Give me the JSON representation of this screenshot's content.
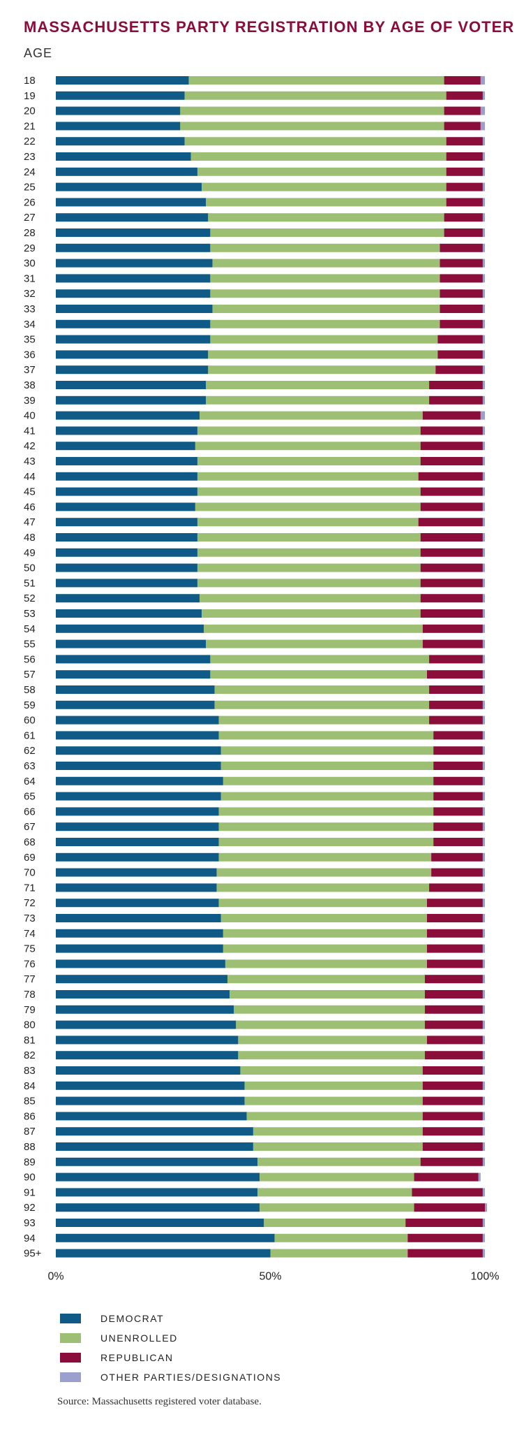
{
  "chart_data": {
    "type": "bar",
    "orientation": "horizontal",
    "stacked": true,
    "title": "MASSACHUSETTS PARTY REGISTRATION BY AGE OF VOTER",
    "ylabel": "AGE",
    "xlim": [
      0,
      100
    ],
    "xticks": [
      "0%",
      "50%",
      "100%"
    ],
    "categories": [
      "18",
      "19",
      "20",
      "21",
      "22",
      "23",
      "24",
      "25",
      "26",
      "27",
      "28",
      "29",
      "30",
      "31",
      "32",
      "33",
      "34",
      "35",
      "36",
      "37",
      "38",
      "39",
      "40",
      "41",
      "42",
      "43",
      "44",
      "45",
      "46",
      "47",
      "48",
      "49",
      "50",
      "51",
      "52",
      "53",
      "54",
      "55",
      "56",
      "57",
      "58",
      "59",
      "60",
      "61",
      "62",
      "63",
      "64",
      "65",
      "66",
      "67",
      "68",
      "69",
      "70",
      "71",
      "72",
      "73",
      "74",
      "75",
      "76",
      "77",
      "78",
      "79",
      "80",
      "81",
      "82",
      "83",
      "84",
      "85",
      "86",
      "87",
      "88",
      "89",
      "90",
      "91",
      "92",
      "93",
      "94",
      "95+"
    ],
    "series": [
      {
        "name": "DEMOCRAT",
        "color": "#0f5a86",
        "values": [
          31,
          30,
          29,
          29,
          30,
          31.5,
          33,
          34,
          35,
          35.5,
          36,
          36,
          36.5,
          36,
          36,
          36.5,
          36,
          36,
          35.5,
          35.5,
          35,
          35,
          33.5,
          33,
          32.5,
          33,
          33,
          33,
          32.5,
          33,
          33,
          33,
          33,
          33,
          33.5,
          34,
          34.5,
          35,
          36,
          36,
          37,
          37,
          38,
          38,
          38.5,
          38.5,
          39,
          38.5,
          38,
          38,
          38,
          38,
          37.5,
          37.5,
          38,
          38.5,
          39,
          39,
          39.5,
          40,
          40.5,
          41.5,
          42,
          42.5,
          42.5,
          43,
          44,
          44,
          44.5,
          46,
          46,
          47,
          47.5,
          47,
          47.5,
          48.5,
          51,
          50
        ]
      },
      {
        "name": "UNENROLLED",
        "color": "#9cbf74",
        "values": [
          59.5,
          61,
          61.5,
          61.5,
          61,
          59.5,
          58,
          57,
          56,
          55,
          54.5,
          53.5,
          53,
          53.5,
          53.5,
          53,
          53.5,
          53,
          53.5,
          53,
          52,
          52,
          52,
          52,
          52.5,
          52,
          51.5,
          52,
          52.5,
          51.5,
          52,
          52,
          52,
          52,
          51.5,
          51,
          51,
          50.5,
          51,
          50.5,
          50,
          50,
          49,
          50,
          49.5,
          49.5,
          49,
          49.5,
          50,
          50,
          50,
          49.5,
          50,
          49.5,
          48.5,
          48,
          47.5,
          47.5,
          47,
          46,
          45.5,
          44.5,
          44,
          44,
          43.5,
          42.5,
          41.5,
          41.5,
          41,
          39.5,
          39.5,
          38,
          36,
          36,
          36,
          33,
          31,
          32
        ]
      },
      {
        "name": "REPUBLICAN",
        "color": "#8b0d3a",
        "values": [
          8.5,
          8.5,
          8.5,
          8.5,
          8.5,
          8.5,
          8.5,
          8.5,
          8.5,
          9,
          9,
          10,
          10,
          10,
          10,
          10,
          10,
          10.5,
          10.5,
          11,
          12.5,
          12.5,
          13.5,
          14.5,
          14.5,
          14.5,
          15,
          14.5,
          14.5,
          15,
          14.5,
          14.5,
          14.5,
          14.5,
          14.5,
          14.5,
          14,
          14,
          12.5,
          13,
          12.5,
          12.5,
          12.5,
          11.5,
          11.5,
          11.5,
          11.5,
          11.5,
          11.5,
          11.5,
          11.5,
          12,
          12,
          12.5,
          13,
          13,
          13,
          13,
          13,
          13.5,
          13.5,
          13.5,
          13.5,
          13,
          13.5,
          14,
          14,
          14,
          14,
          14,
          14,
          14.5,
          15,
          16.5,
          16.5,
          18,
          17.5,
          17.5
        ]
      },
      {
        "name": "OTHER PARTIES/DESIGNATIONS",
        "color": "#9a9fcd",
        "values": [
          1,
          0.5,
          1,
          1,
          0.5,
          0.5,
          0.5,
          0.5,
          0.5,
          0.5,
          0.5,
          0.5,
          0.5,
          0.5,
          0.5,
          0.5,
          0.5,
          0.5,
          0.5,
          0.5,
          0.5,
          0.5,
          1,
          0.5,
          0.5,
          0.5,
          0.5,
          0.5,
          0.5,
          0.5,
          0.5,
          0.5,
          0.5,
          0.5,
          0.5,
          0.5,
          0.5,
          0.5,
          0.5,
          0.5,
          0.5,
          0.5,
          0.5,
          0.5,
          0.5,
          0.5,
          0.5,
          0.5,
          0.5,
          0.5,
          0.5,
          0.5,
          0.5,
          0.5,
          0.5,
          0.5,
          0.5,
          0.5,
          0.5,
          0.5,
          0.5,
          0.5,
          0.5,
          0.5,
          0.5,
          0.5,
          0.5,
          0.5,
          0.5,
          0.5,
          0.5,
          0.5,
          0.5,
          0.5,
          0.5,
          0.5,
          0.5,
          0.5
        ]
      }
    ],
    "legend_position": "bottom-left",
    "source": "Source: Massachusetts registered voter database."
  }
}
